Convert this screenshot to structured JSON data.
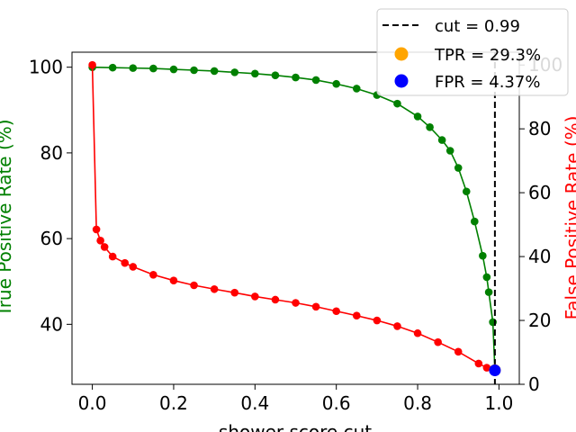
{
  "chart_data": {
    "type": "line",
    "xlabel": "shower score cut",
    "ylabel_left": "True Positive Rate (%)",
    "ylabel_right": "False Positive Rate (%)",
    "xlim": [
      -0.05,
      1.05
    ],
    "ylim_left": [
      26,
      103.5
    ],
    "ylim_right": [
      0,
      104
    ],
    "x_ticks": [
      0.0,
      0.2,
      0.4,
      0.6,
      0.8,
      1.0
    ],
    "x_tick_labels": [
      "0.0",
      "0.2",
      "0.4",
      "0.6",
      "0.8",
      "1.0"
    ],
    "y_left_ticks": [
      40,
      60,
      80,
      100
    ],
    "y_left_tick_labels": [
      "40",
      "60",
      "80",
      "100"
    ],
    "y_right_ticks": [
      0,
      20,
      40,
      60,
      80,
      100
    ],
    "y_right_tick_labels": [
      "0",
      "20",
      "40",
      "60",
      "80",
      "100"
    ],
    "grid": false,
    "legend_position": "top-right",
    "cut_value": 0.99,
    "series": [
      {
        "name": "True Positive Rate",
        "axis": "left",
        "color": "#008000",
        "marker": "circle",
        "points": [
          [
            0.0,
            100
          ],
          [
            0.05,
            99.9
          ],
          [
            0.1,
            99.8
          ],
          [
            0.15,
            99.7
          ],
          [
            0.2,
            99.5
          ],
          [
            0.25,
            99.3
          ],
          [
            0.3,
            99.1
          ],
          [
            0.35,
            98.8
          ],
          [
            0.4,
            98.5
          ],
          [
            0.45,
            98.1
          ],
          [
            0.5,
            97.6
          ],
          [
            0.55,
            97.0
          ],
          [
            0.6,
            96.1
          ],
          [
            0.65,
            95.0
          ],
          [
            0.7,
            93.5
          ],
          [
            0.75,
            91.5
          ],
          [
            0.8,
            88.5
          ],
          [
            0.83,
            86.0
          ],
          [
            0.86,
            83.0
          ],
          [
            0.88,
            80.5
          ],
          [
            0.9,
            76.5
          ],
          [
            0.92,
            71.0
          ],
          [
            0.94,
            64.0
          ],
          [
            0.96,
            56.0
          ],
          [
            0.97,
            51.0
          ],
          [
            0.975,
            47.5
          ],
          [
            0.985,
            40.5
          ],
          [
            0.99,
            29.3
          ]
        ]
      },
      {
        "name": "False Positive Rate",
        "axis": "right",
        "color": "#ff0000",
        "marker": "circle",
        "points": [
          [
            0.0,
            100
          ],
          [
            0.01,
            48.5
          ],
          [
            0.02,
            45.0
          ],
          [
            0.03,
            43.0
          ],
          [
            0.05,
            40.0
          ],
          [
            0.08,
            38.0
          ],
          [
            0.1,
            36.8
          ],
          [
            0.15,
            34.3
          ],
          [
            0.2,
            32.5
          ],
          [
            0.25,
            31.0
          ],
          [
            0.3,
            29.8
          ],
          [
            0.35,
            28.7
          ],
          [
            0.4,
            27.5
          ],
          [
            0.45,
            26.5
          ],
          [
            0.5,
            25.5
          ],
          [
            0.55,
            24.3
          ],
          [
            0.6,
            22.9
          ],
          [
            0.65,
            21.5
          ],
          [
            0.7,
            20.0
          ],
          [
            0.75,
            18.2
          ],
          [
            0.8,
            16.0
          ],
          [
            0.85,
            13.2
          ],
          [
            0.9,
            10.2
          ],
          [
            0.95,
            6.5
          ],
          [
            0.97,
            5.2
          ],
          [
            0.99,
            4.37
          ]
        ]
      }
    ],
    "highlight_points": [
      {
        "name": "TPR",
        "x": 0.99,
        "y": 29.3,
        "axis": "left",
        "color": "#ffa500"
      },
      {
        "name": "FPR",
        "x": 0.99,
        "y": 4.37,
        "axis": "right",
        "color": "#0000ff"
      }
    ],
    "legend": [
      {
        "label": "cut = 0.99",
        "kind": "dashed-line",
        "color": "#000000"
      },
      {
        "label": "TPR = 29.3%",
        "kind": "marker",
        "color": "#ffa500"
      },
      {
        "label": "FPR = 4.37%",
        "kind": "marker",
        "color": "#0000ff"
      }
    ]
  }
}
